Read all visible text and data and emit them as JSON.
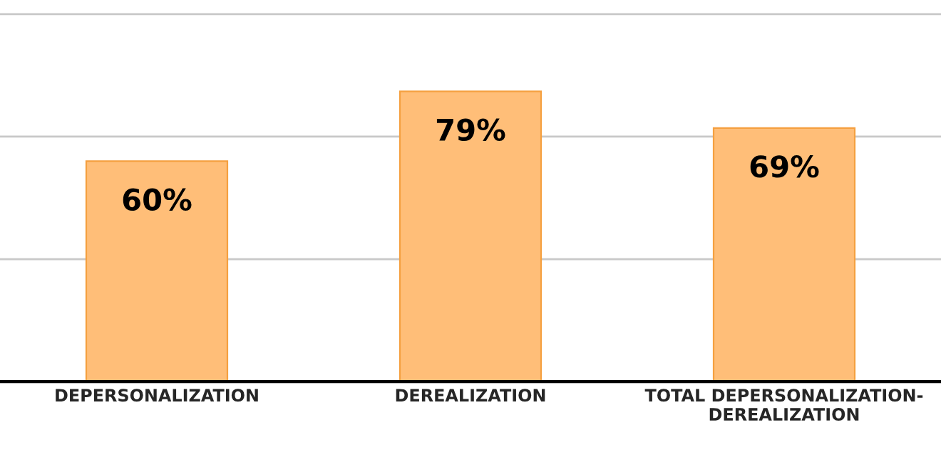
{
  "chart_data": {
    "type": "bar",
    "categories": [
      "DEPERSONALIZATION",
      "DEREALIZATION",
      "TOTAL DEPERSONALIZATION-\nDEREALIZATION"
    ],
    "values": [
      60,
      79,
      69
    ],
    "color": "#ffbe78",
    "data_labels": true,
    "value_labels": [
      "60%",
      "79%",
      "69%"
    ],
    "ylim": [
      0,
      100
    ],
    "ref_lines": [
      {
        "axis": "y",
        "value": 33.3,
        "color": "#c8c8c8"
      },
      {
        "axis": "y",
        "value": 66.7,
        "color": "#c8c8c8"
      },
      {
        "axis": "y",
        "value": 100,
        "color": "#c8c8c8"
      }
    ]
  }
}
